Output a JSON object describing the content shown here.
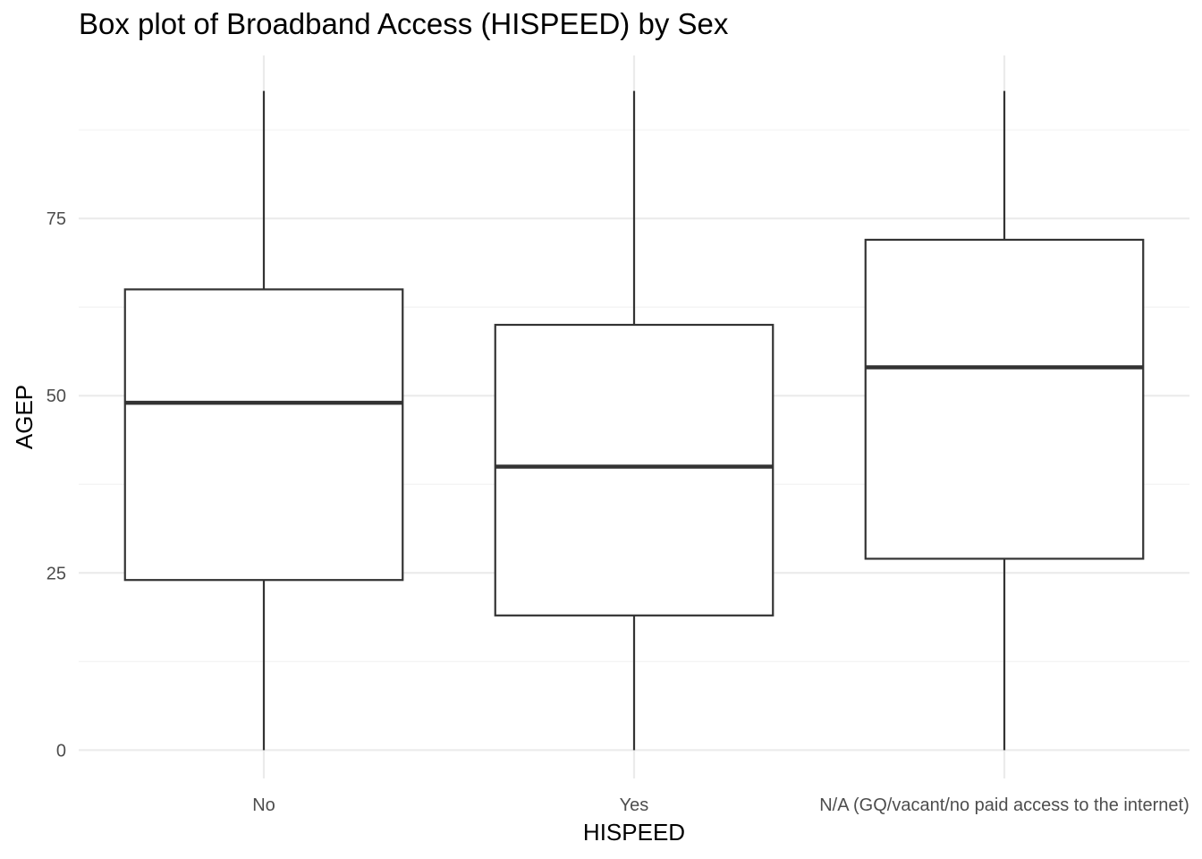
{
  "chart_data": {
    "type": "box",
    "title": "Box plot of Broadband Access (HISPEED) by Sex",
    "xlabel": "HISPEED",
    "ylabel": "AGEP",
    "categories": [
      "No",
      "Yes",
      "N/A (GQ/vacant/no paid access to the internet)"
    ],
    "boxes": [
      {
        "category": "No",
        "min": 0,
        "q1": 24,
        "median": 49,
        "q3": 65,
        "max": 93
      },
      {
        "category": "Yes",
        "min": 0,
        "q1": 19,
        "median": 40,
        "q3": 60,
        "max": 93
      },
      {
        "category": "N/A (GQ/vacant/no paid access to the internet)",
        "min": 0,
        "q1": 27,
        "median": 54,
        "q3": 72,
        "max": 93
      }
    ],
    "yticks": [
      0,
      25,
      50,
      75
    ],
    "ylim": [
      -4,
      98
    ],
    "grid": true,
    "colors": {
      "box_stroke": "#333333",
      "box_fill": "#ffffff",
      "grid_major": "#ebebeb",
      "grid_minor": "#f3f3f3",
      "tick_text": "#4d4d4d"
    }
  }
}
